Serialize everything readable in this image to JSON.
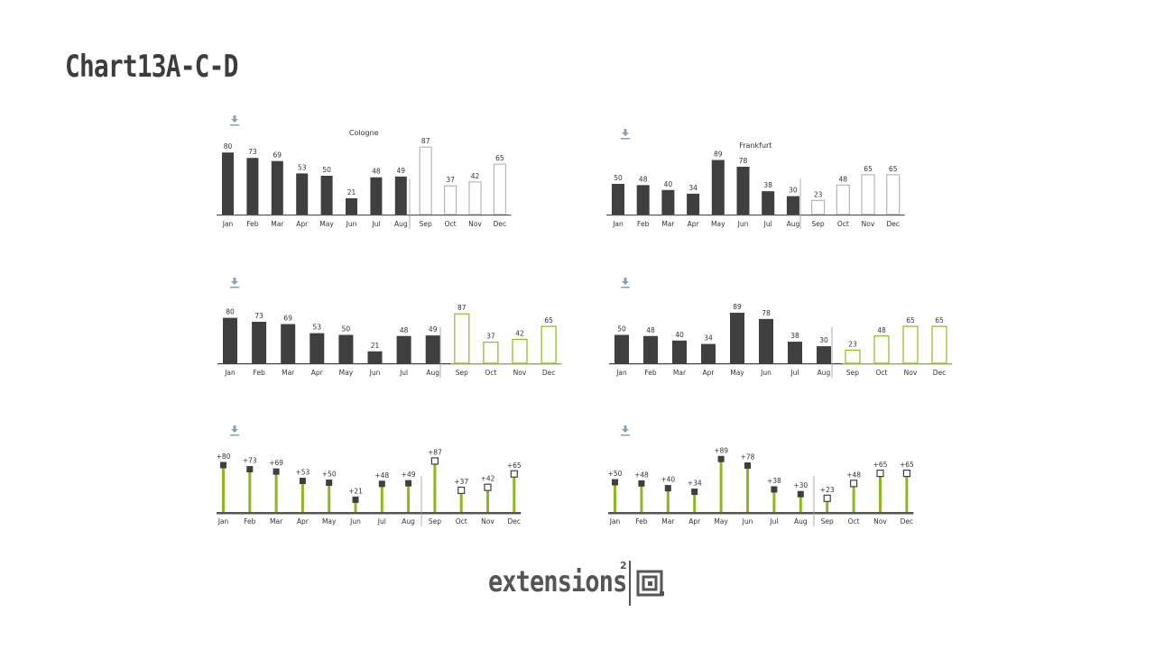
{
  "page": {
    "title": "Chart13A-C-D"
  },
  "logo": {
    "wordmark": "extensions",
    "superscript": "2"
  },
  "colors": {
    "dark": "#3f3f3f",
    "accent": "#8cba1c",
    "outline": "#b7b7b7",
    "axis": "#555555",
    "label": "#333333",
    "divider": "#9a9a9a",
    "icon": "#8aa0b4"
  },
  "chart_data": [
    {
      "type": "bar",
      "variant": "actual-forecast-plain",
      "title": "Cologne",
      "categories": [
        "Jan",
        "Feb",
        "Mar",
        "Apr",
        "May",
        "Jun",
        "Jul",
        "Aug",
        "Sep",
        "Oct",
        "Nov",
        "Dec"
      ],
      "values": [
        80,
        73,
        69,
        53,
        50,
        21,
        48,
        49,
        87,
        37,
        42,
        65
      ],
      "value_labels": [
        "80",
        "73",
        "69",
        "53",
        "50",
        "21",
        "48",
        "49",
        "87",
        "37",
        "42",
        "65"
      ],
      "forecast_from_index": 8,
      "ylim": [
        0,
        100
      ]
    },
    {
      "type": "bar",
      "variant": "actual-forecast-plain",
      "title": "Frankfurt",
      "categories": [
        "Jan",
        "Feb",
        "Mar",
        "Apr",
        "May",
        "Jun",
        "Jul",
        "Aug",
        "Sep",
        "Oct",
        "Nov",
        "Dec"
      ],
      "values": [
        50,
        48,
        40,
        34,
        89,
        78,
        38,
        30,
        23,
        48,
        65,
        65
      ],
      "value_labels": [
        "50",
        "48",
        "40",
        "34",
        "89",
        "78",
        "38",
        "30",
        "23",
        "48",
        "65",
        "65"
      ],
      "forecast_from_index": 8,
      "ylim": [
        0,
        100
      ]
    },
    {
      "type": "bar",
      "variant": "actual-forecast-accent",
      "title": "",
      "categories": [
        "Jan",
        "Feb",
        "Mar",
        "Apr",
        "May",
        "Jun",
        "Jul",
        "Aug",
        "Sep",
        "Oct",
        "Nov",
        "Dec"
      ],
      "values": [
        80,
        73,
        69,
        53,
        50,
        21,
        48,
        49,
        87,
        37,
        42,
        65
      ],
      "value_labels": [
        "80",
        "73",
        "69",
        "53",
        "50",
        "21",
        "48",
        "49",
        "87",
        "37",
        "42",
        "65"
      ],
      "forecast_from_index": 8,
      "ylim": [
        0,
        100
      ]
    },
    {
      "type": "bar",
      "variant": "actual-forecast-accent",
      "title": "",
      "categories": [
        "Jan",
        "Feb",
        "Mar",
        "Apr",
        "May",
        "Jun",
        "Jul",
        "Aug",
        "Sep",
        "Oct",
        "Nov",
        "Dec"
      ],
      "values": [
        50,
        48,
        40,
        34,
        89,
        78,
        38,
        30,
        23,
        48,
        65,
        65
      ],
      "value_labels": [
        "50",
        "48",
        "40",
        "34",
        "89",
        "78",
        "38",
        "30",
        "23",
        "48",
        "65",
        "65"
      ],
      "forecast_from_index": 8,
      "ylim": [
        0,
        100
      ]
    },
    {
      "type": "lollipop",
      "variant": "pin",
      "title": "",
      "categories": [
        "Jan",
        "Feb",
        "Mar",
        "Apr",
        "May",
        "Jun",
        "Jul",
        "Aug",
        "Sep",
        "Oct",
        "Nov",
        "Dec"
      ],
      "values": [
        80,
        73,
        69,
        53,
        50,
        21,
        48,
        49,
        87,
        37,
        42,
        65
      ],
      "value_labels": [
        "+80",
        "+73",
        "+69",
        "+53",
        "+50",
        "+21",
        "+48",
        "+49",
        "+87",
        "+37",
        "+42",
        "+65"
      ],
      "forecast_from_index": 8,
      "ylim": [
        0,
        100
      ]
    },
    {
      "type": "lollipop",
      "variant": "pin",
      "title": "",
      "categories": [
        "Jan",
        "Feb",
        "Mar",
        "Apr",
        "May",
        "Jun",
        "Jul",
        "Aug",
        "Sep",
        "Oct",
        "Nov",
        "Dec"
      ],
      "values": [
        50,
        48,
        40,
        34,
        89,
        78,
        38,
        30,
        23,
        48,
        65,
        65
      ],
      "value_labels": [
        "+50",
        "+48",
        "+40",
        "+34",
        "+89",
        "+78",
        "+38",
        "+30",
        "+23",
        "+48",
        "+65",
        "+65"
      ],
      "forecast_from_index": 8,
      "ylim": [
        0,
        100
      ]
    }
  ]
}
